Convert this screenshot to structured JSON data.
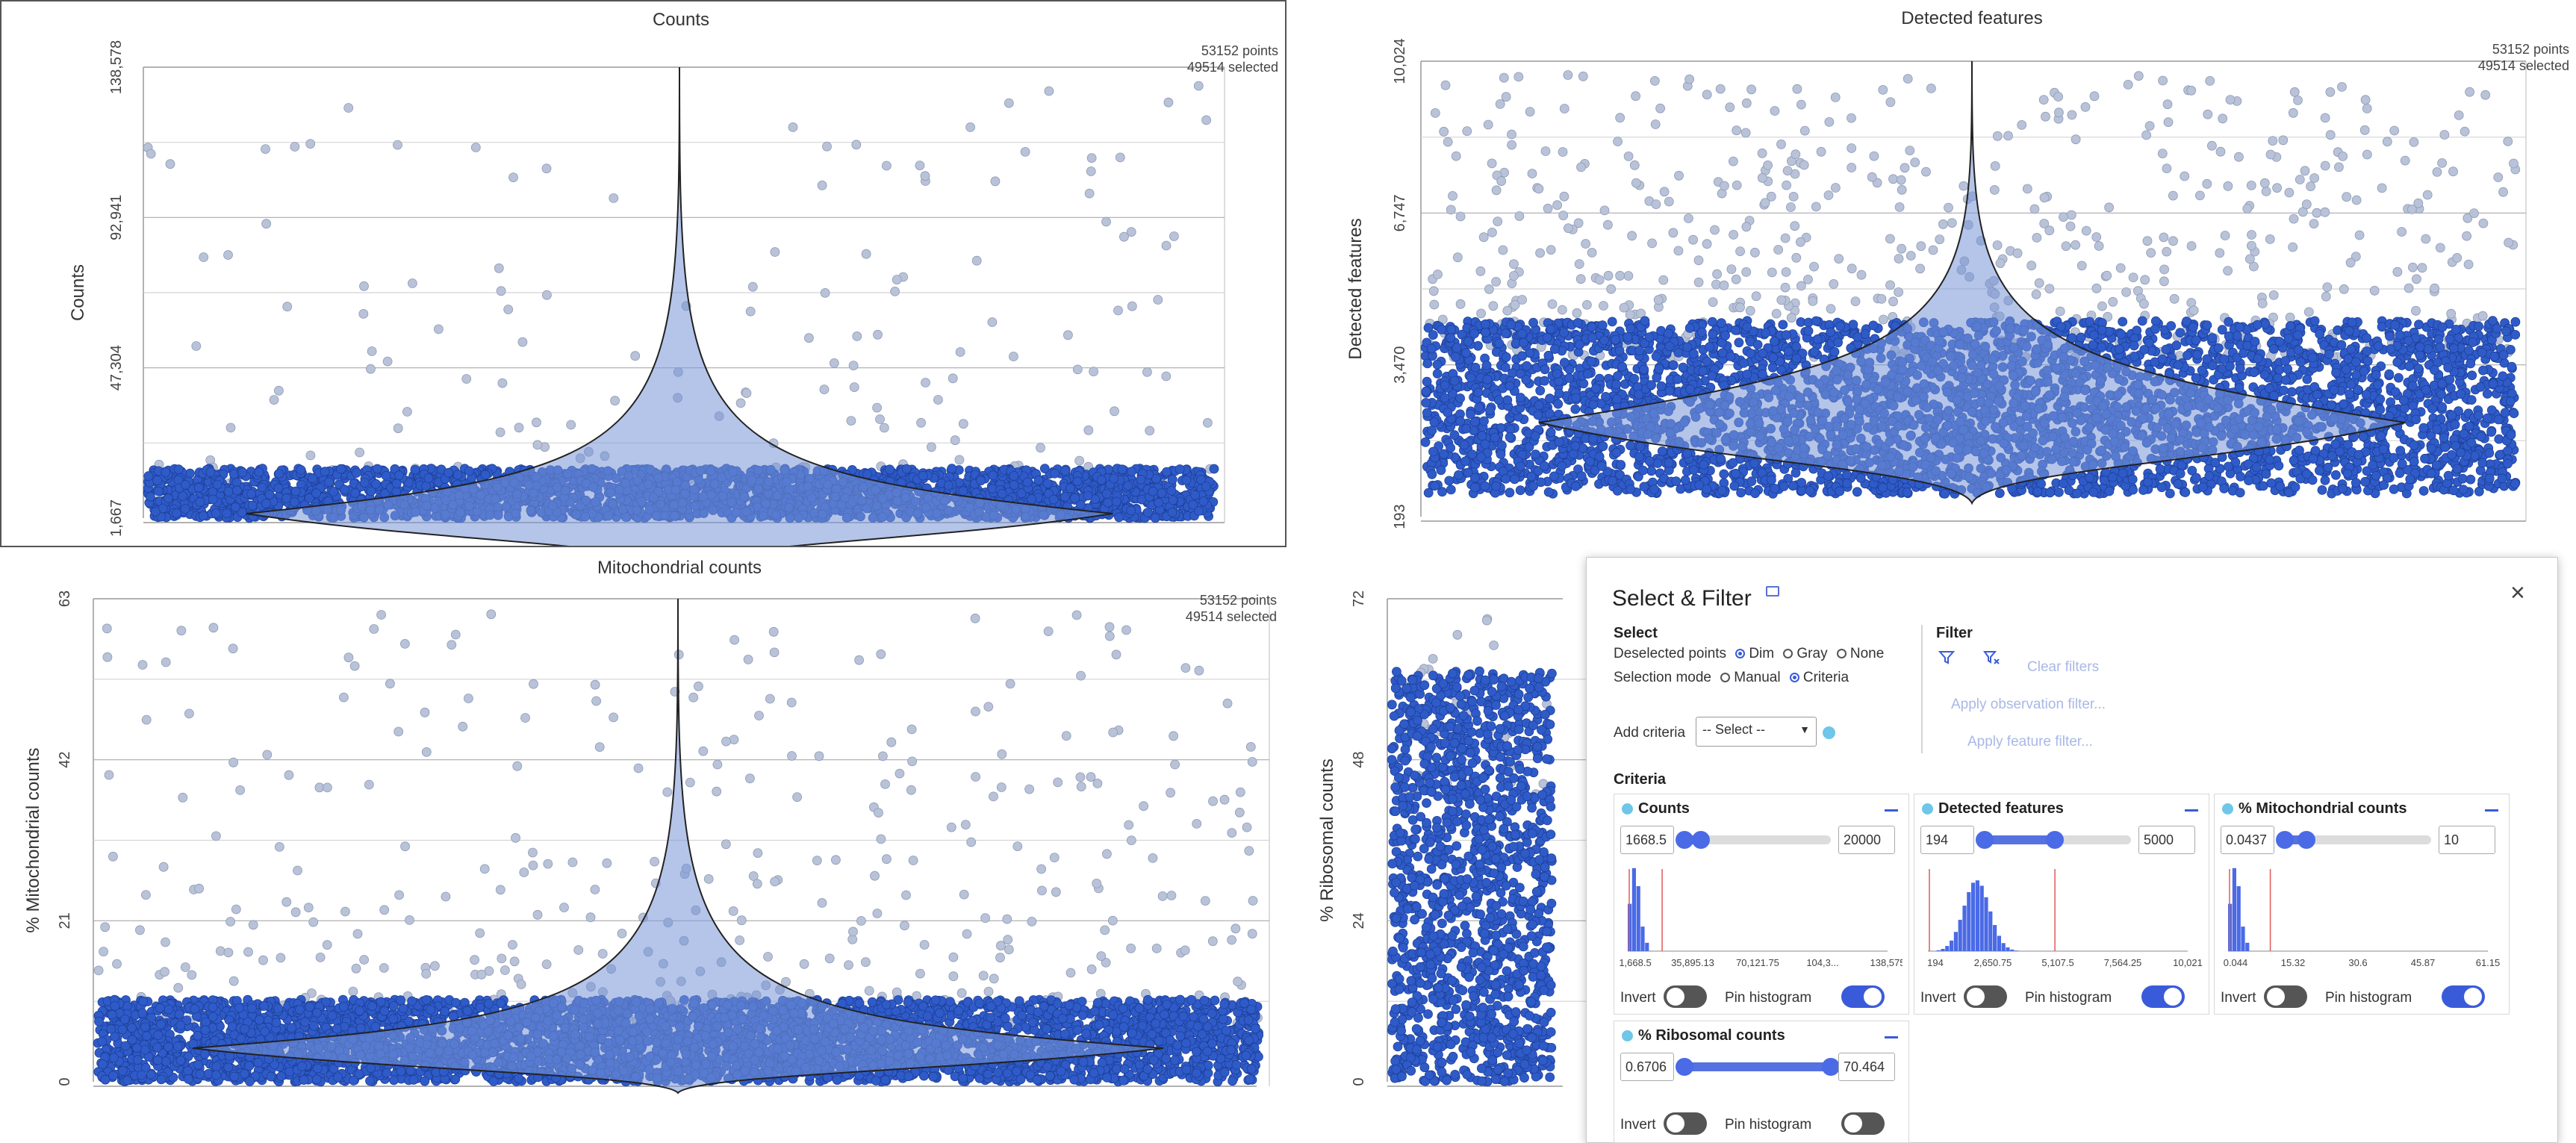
{
  "plots": [
    {
      "title": "Counts",
      "ylabel": "Counts",
      "yticks": [
        "1,667",
        "47,304",
        "92,941",
        "138,578"
      ],
      "info": [
        "53152 points",
        "49514 selected"
      ]
    },
    {
      "title": "Detected features",
      "ylabel": "Detected features",
      "yticks": [
        "193",
        "3,470",
        "6,747",
        "10,024"
      ],
      "info": [
        "53152 points",
        "49514 selected"
      ]
    },
    {
      "title": "Mitochondrial counts",
      "ylabel": "% Mitochondrial counts",
      "yticks": [
        "0",
        "21",
        "42",
        "63"
      ],
      "info": [
        "53152 points",
        "49514 selected"
      ]
    },
    {
      "title": "",
      "ylabel": "% Ribosomal counts",
      "yticks": [
        "0",
        "24",
        "48",
        "72"
      ],
      "info": []
    }
  ],
  "colors": {
    "selected": "#2f5bc9",
    "deselected": "#b8c2d8",
    "accent": "#3a5bd9",
    "dot": "#6ec6e8"
  },
  "select_filter": {
    "title": "Select & Filter",
    "close_icon": "close-icon",
    "select_heading": "Select",
    "deselected_points_label": "Deselected points",
    "deselected_options": [
      "Dim",
      "Gray",
      "None"
    ],
    "deselected_value": "Dim",
    "selection_mode_label": "Selection mode",
    "selection_modes": [
      "Manual",
      "Criteria"
    ],
    "selection_mode_value": "Criteria",
    "add_criteria_label": "Add criteria",
    "add_criteria_placeholder": "-- Select --",
    "filter_heading": "Filter",
    "clear_filters": "Clear filters",
    "apply_observation_filter": "Apply observation filter...",
    "apply_feature_filter": "Apply feature filter...",
    "criteria_heading": "Criteria",
    "invert_label": "Invert",
    "pin_label": "Pin histogram",
    "criteria": [
      {
        "name": "Counts",
        "min": "1668.5",
        "max": "20000",
        "low": 0.0,
        "high": 0.1324,
        "xticks": [
          "1,668.5",
          "35,895.13",
          "70,121.75",
          "104,3...",
          "138,575"
        ],
        "pinned": true
      },
      {
        "name": "Detected features",
        "min": "194",
        "max": "5000",
        "low": 0.0,
        "high": 0.4888,
        "xticks": [
          "194",
          "2,650.75",
          "5,107.5",
          "7,564.25",
          "10,021"
        ],
        "pinned": true
      },
      {
        "name": "% Mitochondrial counts",
        "min": "0.0437",
        "max": "10",
        "low": 0.0,
        "high": 0.1626,
        "xticks": [
          "0.044",
          "15.32",
          "30.6",
          "45.87",
          "61.15"
        ],
        "pinned": true
      },
      {
        "name": "% Ribosomal counts",
        "min": "0.6706",
        "max": "70.464",
        "low": 0.0,
        "high": 1.0,
        "xticks": [],
        "pinned": false
      }
    ]
  }
}
